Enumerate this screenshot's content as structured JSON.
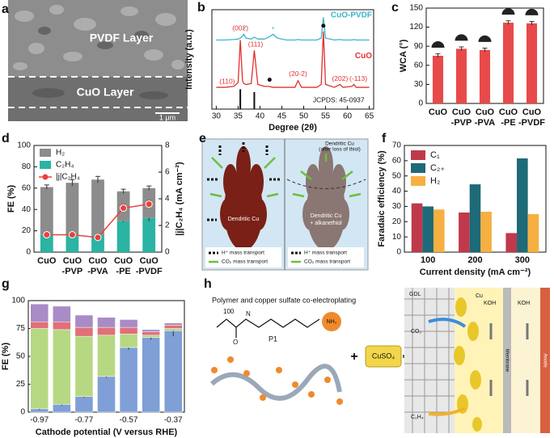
{
  "panel_labels": [
    "a",
    "b",
    "c",
    "d",
    "e",
    "f",
    "g",
    "h"
  ],
  "image_a": {
    "top_layer": "PVDF Layer",
    "bottom_layer": "CuO Layer",
    "scale_bar": "1 μm"
  },
  "image_e": {
    "left_label": "Dendritic Cu",
    "right_label": [
      "Dendritic Cu",
      "+ alkanethiol"
    ],
    "right_top_label": [
      "Dendritic Cu",
      "(after loss of thiol)"
    ],
    "legend": [
      "H⁺ mass transport",
      "CO₂ mass transport"
    ]
  },
  "image_h": {
    "title": "Polymer and copper sulfate co-electroplating",
    "polymer": "P1",
    "repeat": "100",
    "amine": "NH₂",
    "plus": "+",
    "salt": "CuSO₄",
    "labels": {
      "gdl": "GDL",
      "cu": "Cu",
      "koh1": "KOH",
      "koh2": "KOH",
      "membrane": "Membrane",
      "anode": "Anode",
      "co2": "CO₂",
      "c2h4": "C₂H₄"
    }
  },
  "chart_data": [
    {
      "type": "line",
      "xlabel": "Degree (2θ)",
      "ylabel": "Intensity (a.u.)",
      "x": [
        30,
        32,
        34,
        35,
        35.5,
        36,
        36.3,
        36.8,
        38,
        38.7,
        39.5,
        41,
        42,
        43,
        44,
        46,
        48,
        48.7,
        49.5,
        51,
        53,
        54,
        54.5,
        55,
        57,
        58.3,
        59,
        61,
        61.5,
        62,
        64,
        65
      ],
      "series": [
        {
          "name": "CuO-PVDF",
          "color": "#3bb5c8",
          "values": [
            7.3,
            7.3,
            7.35,
            7.4,
            7.5,
            7.7,
            7.9,
            7.5,
            7.4,
            7.6,
            7.4,
            7.4,
            7.6,
            7.9,
            7.5,
            7.3,
            7.3,
            7.35,
            7.3,
            7.3,
            7.3,
            7.5,
            9.7,
            7.5,
            7.3,
            7.35,
            7.3,
            7.3,
            7.35,
            7.3,
            7.3,
            7.3
          ]
        },
        {
          "name": "CuO",
          "color": "#e0302e",
          "values": [
            2.3,
            2.3,
            2.4,
            2.8,
            7.3,
            3.0,
            2.7,
            2.6,
            2.7,
            6.2,
            2.6,
            2.4,
            2.4,
            2.3,
            2.3,
            2.3,
            2.3,
            3.0,
            2.3,
            2.3,
            2.3,
            2.6,
            8.2,
            2.6,
            2.3,
            2.6,
            2.3,
            2.4,
            2.6,
            2.3,
            2.3,
            2.3
          ]
        }
      ],
      "sticks": {
        "x": [
          35.5,
          38.7
        ],
        "values": [
          2.1,
          1.8
        ],
        "color": "#111111"
      },
      "annotations": [
        {
          "text": "(110)",
          "color": "#e0302e"
        },
        {
          "text": "(002)",
          "color": "#e0302e"
        },
        {
          "text": "(111)",
          "color": "#e0302e"
        },
        {
          "text": "(20-2)",
          "color": "#e0302e"
        },
        {
          "text": "(202)",
          "color": "#e0302e"
        },
        {
          "text": "(-113)",
          "color": "#e0302e"
        },
        {
          "text": "JCPDS: 45-0937",
          "color": "#111111"
        },
        {
          "text": "*",
          "color": "#3bb5c8"
        },
        {
          "text": "*",
          "color": "#3bb5c8"
        }
      ],
      "xlim": [
        29,
        66
      ],
      "xticks": [
        30,
        35,
        40,
        45,
        50,
        55,
        60,
        65
      ],
      "ylim": [
        0,
        10.5
      ]
    },
    {
      "type": "bar",
      "ylabel": "WCA (°)",
      "categories": [
        [
          "CuO"
        ],
        [
          "CuO",
          "-PVP"
        ],
        [
          "CuO",
          "-PVA"
        ],
        [
          "CuO",
          "-PE"
        ],
        [
          "CuO",
          "-PVDF"
        ]
      ],
      "values": [
        75,
        86,
        84,
        127,
        126
      ],
      "errors": [
        3,
        3,
        3,
        3,
        3
      ],
      "color": "#e84a4a",
      "ylim": [
        0,
        150
      ],
      "yticks": [
        0,
        30,
        60,
        90,
        120,
        150
      ]
    },
    {
      "type": "stacked_bar",
      "ylabel": "FE (%)",
      "y2label": "|j|C₂H₄ (mA cm⁻²)",
      "categories": [
        [
          "CuO"
        ],
        [
          "CuO",
          "-PVP"
        ],
        [
          "CuO",
          "-PVA"
        ],
        [
          "CuO",
          "-PE"
        ],
        [
          "CuO",
          "-PVDF"
        ]
      ],
      "series": [
        {
          "name": "C₂H₄",
          "color": "#2bb3a3",
          "values": [
            16,
            15,
            16,
            29,
            32
          ],
          "errors": [
            2,
            2,
            2,
            1,
            3
          ]
        },
        {
          "name": "H₂",
          "color": "#8c8c8c",
          "values": [
            45,
            50,
            52,
            28,
            28
          ],
          "errors": [
            2,
            3,
            3,
            2,
            2
          ]
        },
        {
          "name": "|j|C₂H₄",
          "color": "#e8413c",
          "axis": "y2",
          "values": [
            1.3,
            1.3,
            1.1,
            3.3,
            3.6
          ],
          "errors": [
            0.1,
            0.1,
            0.1,
            0.3,
            0.3
          ]
        }
      ],
      "ylim": [
        0,
        100
      ],
      "yticks": [
        0,
        20,
        40,
        60,
        80,
        100
      ],
      "y2lim": [
        0,
        8
      ],
      "y2ticks": [
        0,
        2,
        4,
        6,
        8
      ],
      "legend": "upper left"
    },
    {
      "type": "grouped_bar",
      "ylabel": "Faradaic efficiency (%)",
      "xlabel": "Current density (mA cm⁻²)",
      "categories": [
        100,
        200,
        300
      ],
      "series": [
        {
          "name": "C₁",
          "color": "#c0394b",
          "values": [
            32,
            26,
            12.5
          ]
        },
        {
          "name": "C₂₊",
          "color": "#1e6a78",
          "values": [
            30,
            44.5,
            61.5
          ]
        },
        {
          "name": "H₂",
          "color": "#f6b042",
          "values": [
            28,
            26.5,
            25
          ]
        }
      ],
      "ylim": [
        0,
        70
      ],
      "yticks": [
        0,
        10,
        20,
        30,
        40,
        50,
        60,
        70
      ],
      "legend": "upper left"
    },
    {
      "type": "stacked_bar",
      "ylabel": "FE (%)",
      "xlabel": "Cathode potential (V versus RHE)",
      "categories": [
        -0.97,
        null,
        -0.77,
        null,
        -0.57,
        null,
        -0.37
      ],
      "series": [
        {
          "color": "#7f9fd6",
          "values": [
            3,
            7,
            14,
            32,
            58,
            67,
            73
          ],
          "errors": [
            1,
            1,
            1,
            1,
            2,
            2,
            5
          ]
        },
        {
          "color": "#b6d882",
          "values": [
            72,
            67,
            54,
            37,
            12,
            2,
            2
          ]
        },
        {
          "color": "#e0707a",
          "values": [
            6,
            7,
            8,
            7,
            6,
            3,
            3
          ]
        },
        {
          "color": "#a98bc6",
          "values": [
            16,
            14,
            11,
            9,
            7,
            2,
            2
          ]
        }
      ],
      "ylim": [
        0,
        100
      ],
      "yticks": [
        0,
        25,
        50,
        75,
        100
      ]
    }
  ]
}
